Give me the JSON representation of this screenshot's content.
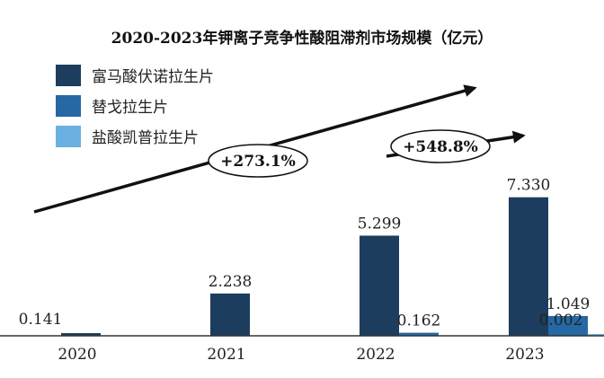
{
  "chart_data": {
    "type": "bar",
    "title": "2020-2023年钾离子竞争性酸阻滞剂市场规模（亿元）",
    "categories": [
      "2020",
      "2021",
      "2022",
      "2023"
    ],
    "series": [
      {
        "name": "富马酸伏诺拉生片",
        "color": "#1c3d5e",
        "values": [
          0.141,
          2.238,
          5.299,
          7.33
        ],
        "labels": [
          "0.141",
          "2.238",
          "5.299",
          "7.330"
        ]
      },
      {
        "name": "替戈拉生片",
        "color": "#2568a4",
        "values": [
          null,
          null,
          0.162,
          1.049
        ],
        "labels": [
          "",
          "",
          "0.162",
          "1.049"
        ]
      },
      {
        "name": "盐酸凯普拉生片",
        "color": "#6ab0e0",
        "values": [
          null,
          null,
          null,
          0.002
        ],
        "labels": [
          "",
          "",
          "",
          "0.002"
        ]
      }
    ],
    "ylim": [
      0,
      10
    ],
    "legend_position": "top-left",
    "grid": false,
    "annotations": [
      {
        "text": "+273.1%",
        "shape": "ellipse-on-arrow"
      },
      {
        "text": "+548.8%",
        "shape": "ellipse-on-arrow"
      }
    ]
  }
}
